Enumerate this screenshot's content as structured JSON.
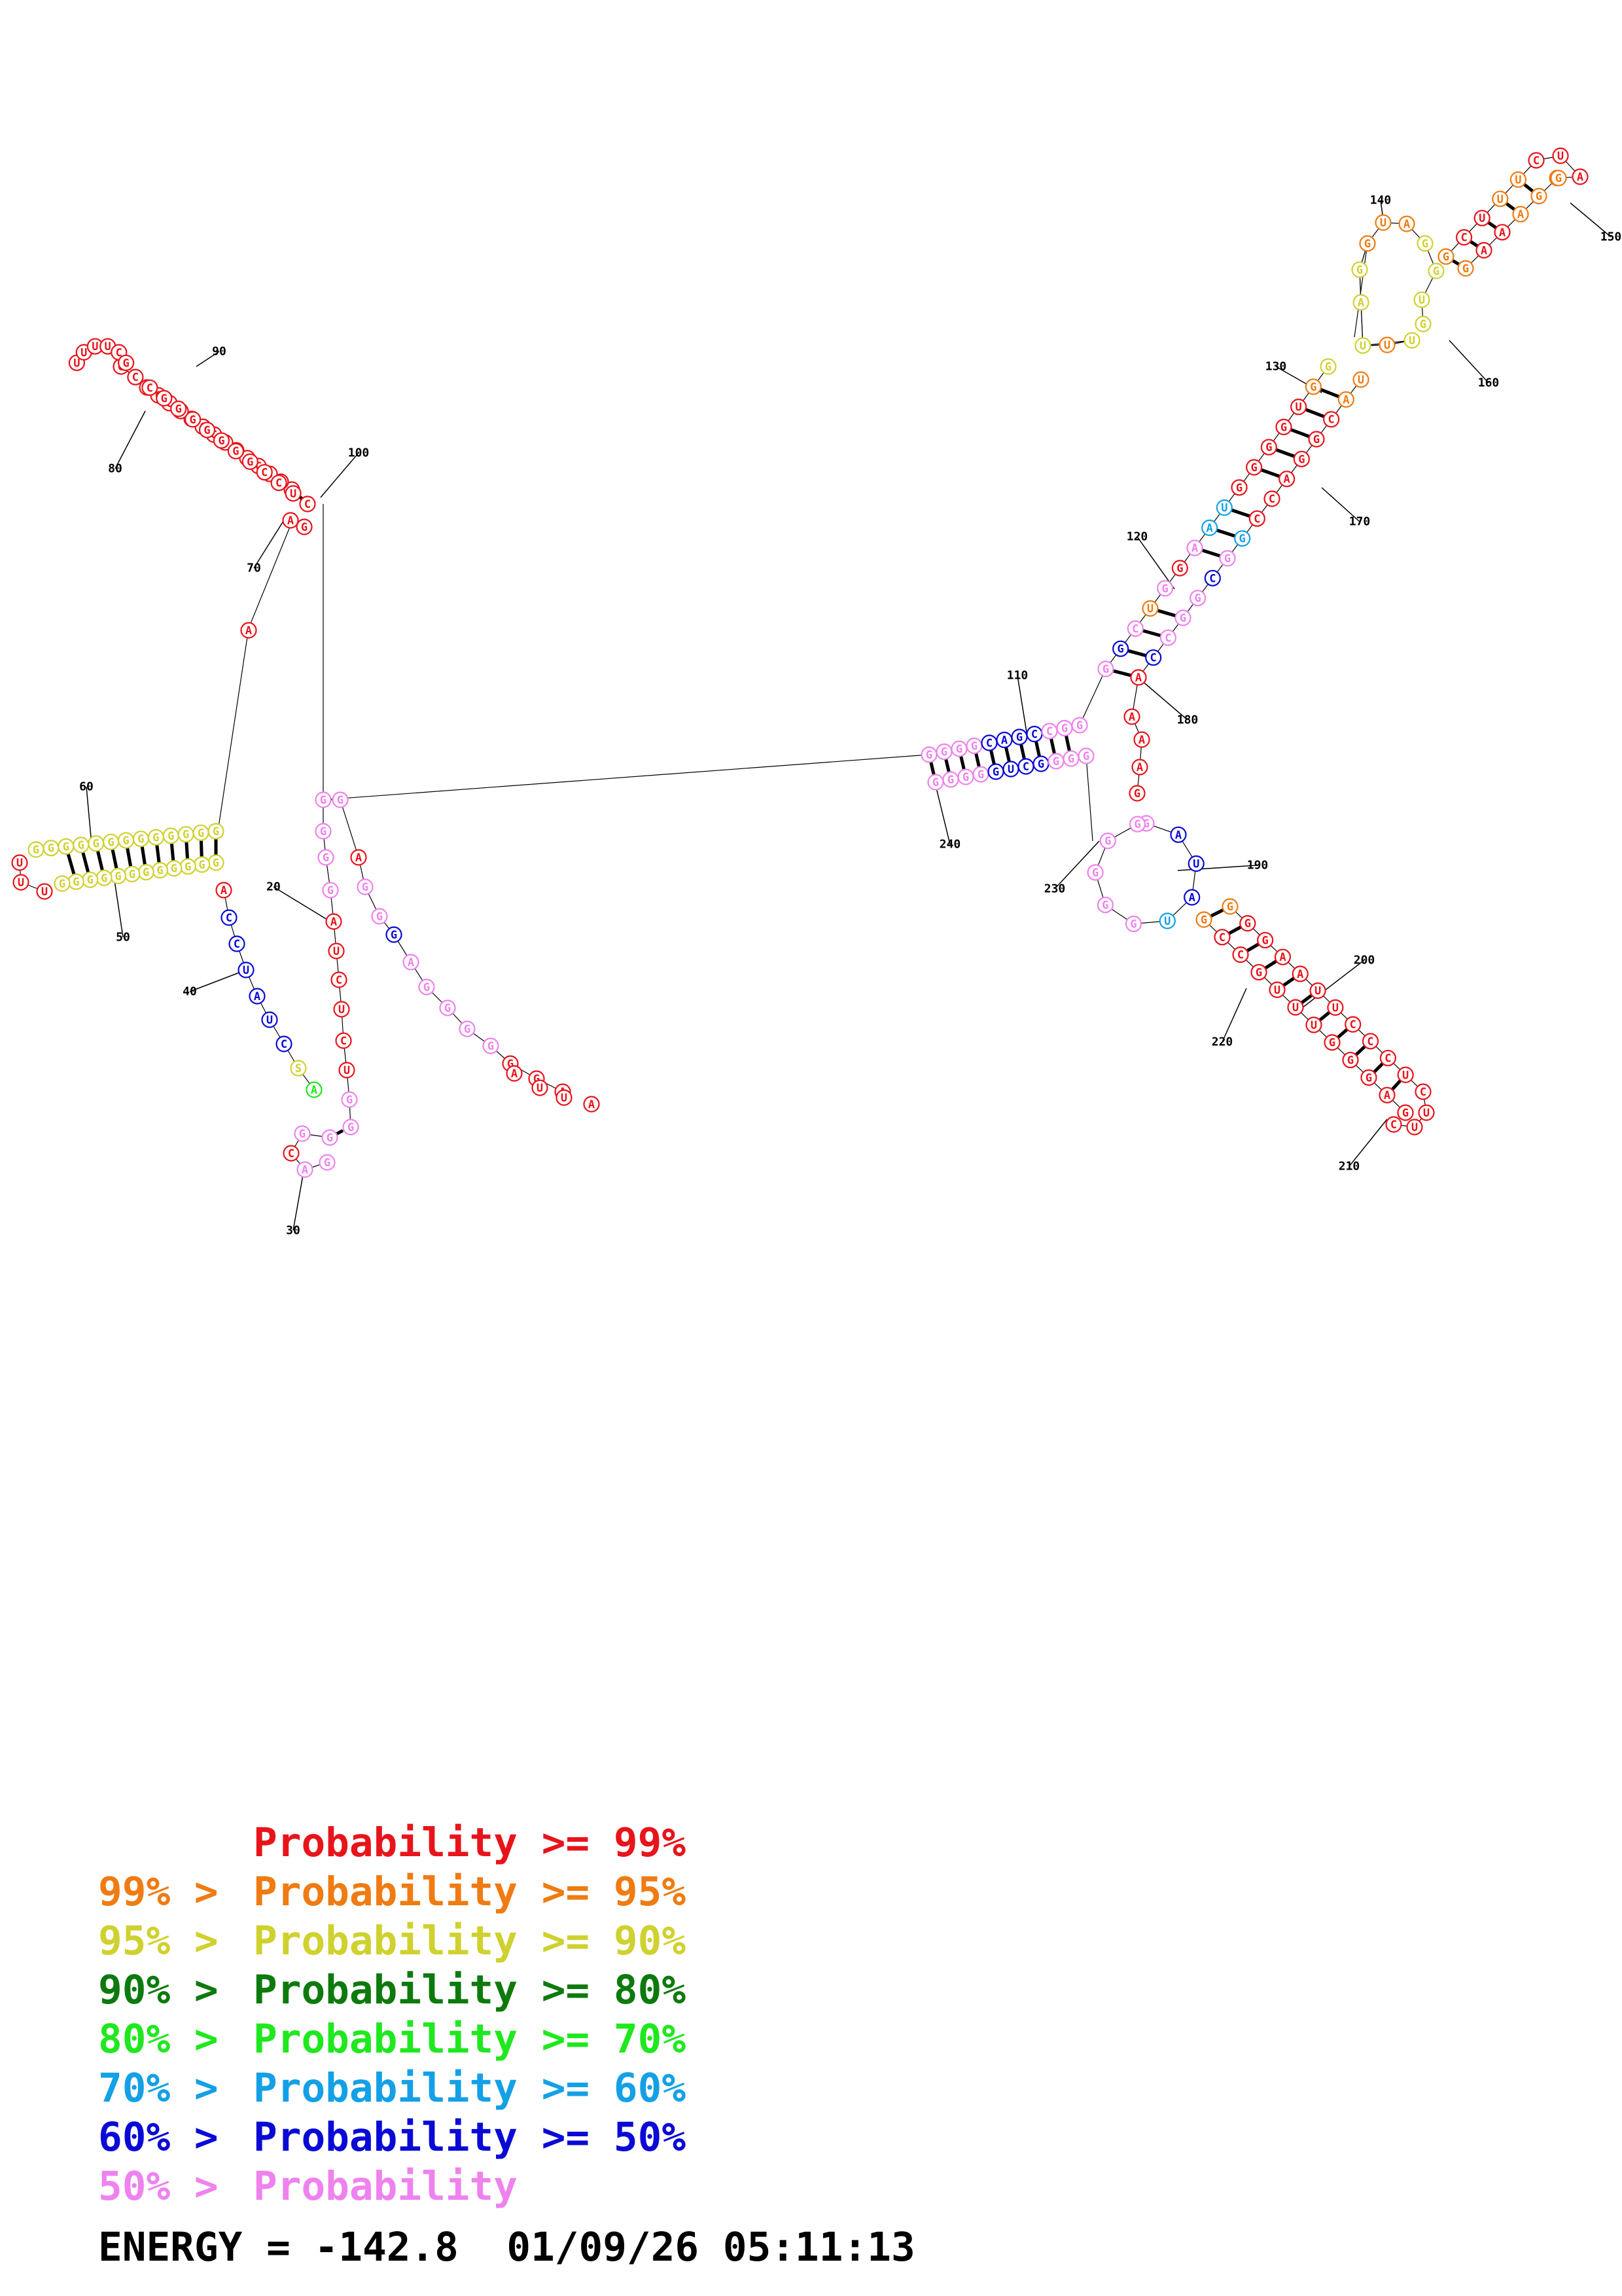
{
  "legend": [
    {
      "prefix": "",
      "label": "Probability >= 99%",
      "color": "#e8141b"
    },
    {
      "prefix": "99% > ",
      "label": "Probability >= 95%",
      "color": "#ef7b12"
    },
    {
      "prefix": "95% > ",
      "label": "Probability >= 90%",
      "color": "#cfd12f"
    },
    {
      "prefix": "90% > ",
      "label": "Probability >= 80%",
      "color": "#0d7a0d"
    },
    {
      "prefix": "80% > ",
      "label": "Probability >= 70%",
      "color": "#1fe81f"
    },
    {
      "prefix": "70% > ",
      "label": "Probability >= 60%",
      "color": "#14a0e6"
    },
    {
      "prefix": "60% > ",
      "label": "Probability >= 50%",
      "color": "#0a0ad6"
    },
    {
      "prefix": "50% > ",
      "label": "Probability",
      "color": "#ee82ee"
    }
  ],
  "footer": {
    "energy": "ENERGY = -142.8",
    "timestamp": "01/09/26 05:11:13"
  },
  "position_labels": [
    "20",
    "30",
    "40",
    "50",
    "60",
    "70",
    "80",
    "90",
    "100",
    "110",
    "120",
    "130",
    "140",
    "150",
    "160",
    "170",
    "180",
    "190",
    "200",
    "210",
    "220",
    "230",
    "240"
  ],
  "sequence_preview": "UUGGCCCCCCCCCUAGA",
  "tail_sequence": "AUUA"
}
